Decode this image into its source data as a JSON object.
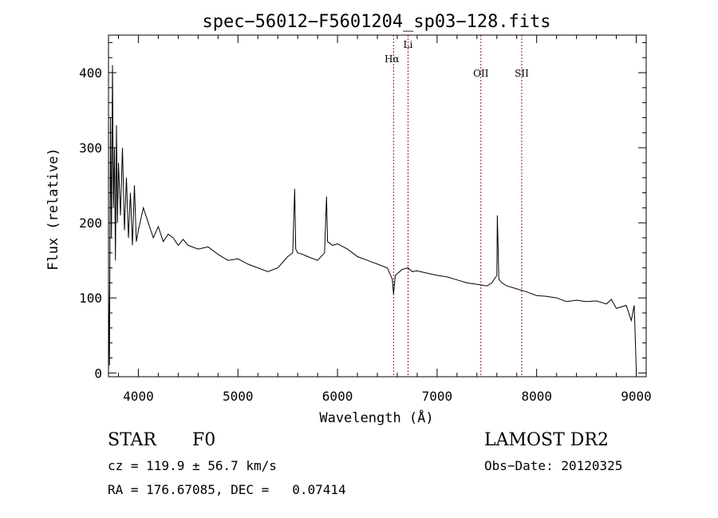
{
  "chart_data": {
    "type": "line",
    "title": "spec−56012−F5601204_sp03−128.fits",
    "xlabel": "Wavelength (Å)",
    "ylabel": "Flux (relative)",
    "xlim": [
      3700,
      9100
    ],
    "ylim": [
      -5,
      450
    ],
    "x_ticks": [
      4000,
      5000,
      6000,
      7000,
      8000,
      9000
    ],
    "y_ticks": [
      0,
      100,
      200,
      300,
      400
    ],
    "grid": false,
    "line_color": "#000000",
    "marker_color": "#8b1a1a",
    "lines": [
      {
        "label": "Hα",
        "x": 6563
      },
      {
        "label": "Li",
        "x": 6708
      },
      {
        "label": "OII",
        "x": 7440
      },
      {
        "label": "SII",
        "x": 7850
      }
    ],
    "series": [
      {
        "x": [
          3700,
          3710,
          3720,
          3730,
          3740,
          3750,
          3760,
          3770,
          3780,
          3790,
          3800,
          3820,
          3840,
          3860,
          3880,
          3900,
          3920,
          3940,
          3960,
          3980,
          4000,
          4050,
          4100,
          4150,
          4200,
          4250,
          4300,
          4350,
          4400,
          4450,
          4500,
          4600,
          4700,
          4800,
          4900,
          5000,
          5100,
          5200,
          5300,
          5400,
          5500,
          5550,
          5570,
          5580,
          5600,
          5650,
          5700,
          5800,
          5870,
          5890,
          5900,
          5950,
          6000,
          6100,
          6200,
          6300,
          6400,
          6500,
          6550,
          6563,
          6580,
          6650,
          6708,
          6750,
          6800,
          6900,
          7000,
          7100,
          7200,
          7300,
          7400,
          7500,
          7550,
          7600,
          7605,
          7620,
          7650,
          7700,
          7800,
          7900,
          8000,
          8100,
          8200,
          8300,
          8400,
          8500,
          8600,
          8700,
          8750,
          8800,
          8900,
          8950,
          8980,
          9000
        ],
        "y": [
          120,
          10,
          340,
          180,
          410,
          220,
          300,
          150,
          330,
          200,
          280,
          210,
          300,
          190,
          260,
          180,
          240,
          170,
          250,
          175,
          190,
          220,
          200,
          180,
          195,
          175,
          185,
          180,
          170,
          178,
          170,
          165,
          168,
          158,
          150,
          152,
          145,
          140,
          135,
          140,
          155,
          160,
          245,
          165,
          160,
          158,
          155,
          150,
          160,
          235,
          175,
          170,
          172,
          165,
          155,
          150,
          145,
          140,
          125,
          105,
          130,
          138,
          140,
          135,
          136,
          133,
          130,
          128,
          124,
          120,
          118,
          116,
          120,
          130,
          210,
          125,
          120,
          116,
          112,
          108,
          103,
          102,
          100,
          95,
          97,
          95,
          96,
          92,
          98,
          86,
          90,
          70,
          90,
          5
        ]
      }
    ]
  },
  "annotations": {
    "object_class": "STAR",
    "subclass": "F0",
    "survey": "LAMOST DR2",
    "velocity": "cz = 119.9 ± 56.7 km/s",
    "obs_date": "Obs−Date: 20120325",
    "coordinates": "RA = 176.67085, DEC =   0.07414"
  }
}
